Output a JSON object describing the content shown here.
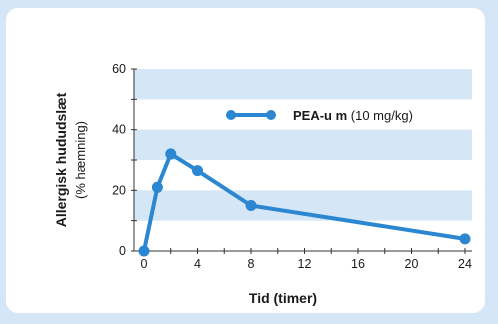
{
  "chart_data": {
    "type": "line",
    "title": "",
    "xlabel": "Tid (timer)",
    "ylabel": "Allergisk hududslæt",
    "ylabel_sub": "(% hæmning)",
    "x_ticks": [
      0,
      4,
      8,
      12,
      16,
      20,
      24
    ],
    "y_ticks": [
      0,
      20,
      40,
      60
    ],
    "xlim": [
      0,
      24
    ],
    "ylim": [
      0,
      60
    ],
    "bands_y": [
      [
        10,
        20
      ],
      [
        30,
        40
      ],
      [
        50,
        60
      ]
    ],
    "legend_position": "top-right",
    "series": [
      {
        "name_bold": "PEA-u m",
        "name_rest": " (10 mg/kg)",
        "color": "#2b87d1",
        "x": [
          0,
          1,
          2,
          4,
          8,
          24
        ],
        "y": [
          0,
          21,
          32,
          26.5,
          15,
          4
        ]
      }
    ]
  },
  "colors": {
    "page_bg": "#d5e6f6",
    "card_bg": "#ffffff",
    "band": "#d5e6f6",
    "axis": "#333333"
  }
}
